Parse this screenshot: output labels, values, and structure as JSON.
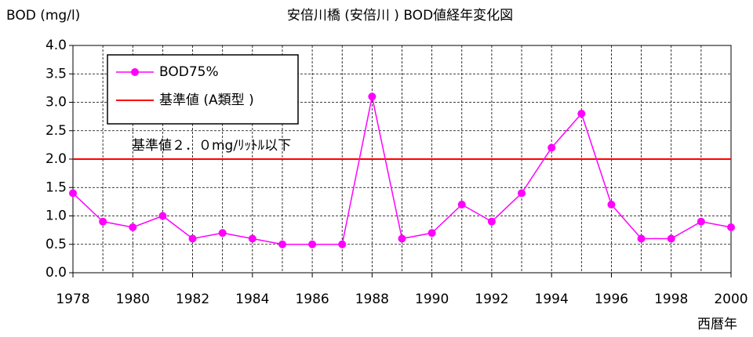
{
  "chart_data": {
    "type": "line",
    "title": "安倍川橋 (安倍川 ) BOD値経年変化図",
    "y_label": "BOD (mg/l)",
    "x_label": "西暦年",
    "x": [
      1978,
      1979,
      1980,
      1981,
      1982,
      1983,
      1984,
      1985,
      1986,
      1987,
      1988,
      1989,
      1990,
      1991,
      1992,
      1993,
      1994,
      1995,
      1996,
      1997,
      1998,
      1999,
      2000
    ],
    "series": [
      {
        "name": "BOD75%",
        "color": "#ff00ff",
        "values": [
          1.4,
          0.9,
          0.8,
          1.0,
          0.6,
          0.7,
          0.6,
          0.5,
          0.5,
          0.5,
          3.1,
          0.6,
          0.7,
          1.2,
          0.9,
          1.4,
          2.2,
          2.8,
          1.2,
          0.6,
          0.6,
          0.9,
          0.8
        ]
      }
    ],
    "reference": {
      "name": "基準値 (A類型 )",
      "value": 2,
      "color": "#ff0000"
    },
    "annotation": "基準値２．０mg/ﾘｯﾄﾙ以下",
    "xlim": [
      1978,
      2000
    ],
    "xticks": [
      1978,
      1980,
      1982,
      1984,
      1986,
      1988,
      1990,
      1992,
      1994,
      1996,
      1998,
      2000
    ],
    "ylim": [
      0,
      4
    ],
    "yticks": [
      {
        "value": 0,
        "label": "0.0"
      },
      0.5,
      {
        "value": 1,
        "label": "1.0"
      },
      1.5,
      {
        "value": 2,
        "label": "2.0"
      },
      2.5,
      {
        "value": 3,
        "label": "3.0"
      },
      3.5,
      {
        "value": 4,
        "label": "4.0"
      }
    ],
    "grid": true
  }
}
